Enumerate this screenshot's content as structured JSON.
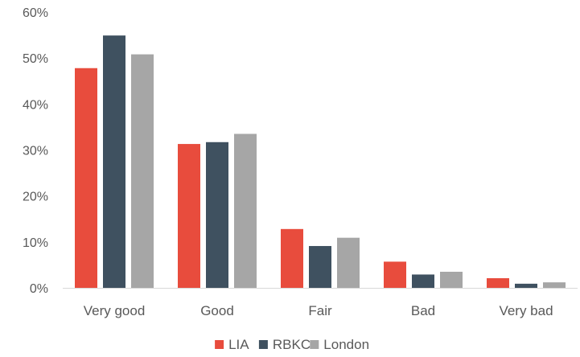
{
  "chart_data": {
    "type": "bar",
    "categories": [
      "Very good",
      "Good",
      "Fair",
      "Bad",
      "Very bad"
    ],
    "series": [
      {
        "name": "LIA",
        "color": "#e84c3d",
        "values": [
          47.8,
          31.3,
          12.8,
          5.7,
          2.1
        ]
      },
      {
        "name": "RBKC",
        "color": "#3f5160",
        "values": [
          54.9,
          31.7,
          9.1,
          2.9,
          0.9
        ]
      },
      {
        "name": "London",
        "color": "#a6a6a6",
        "values": [
          50.8,
          33.5,
          10.9,
          3.5,
          1.2
        ]
      }
    ],
    "ylim": [
      0,
      60
    ],
    "yticks": [
      "0%",
      "10%",
      "20%",
      "30%",
      "40%",
      "50%",
      "60%"
    ],
    "grid": false,
    "legend_position": "bottom",
    "title": "",
    "xlabel": "",
    "ylabel": ""
  }
}
